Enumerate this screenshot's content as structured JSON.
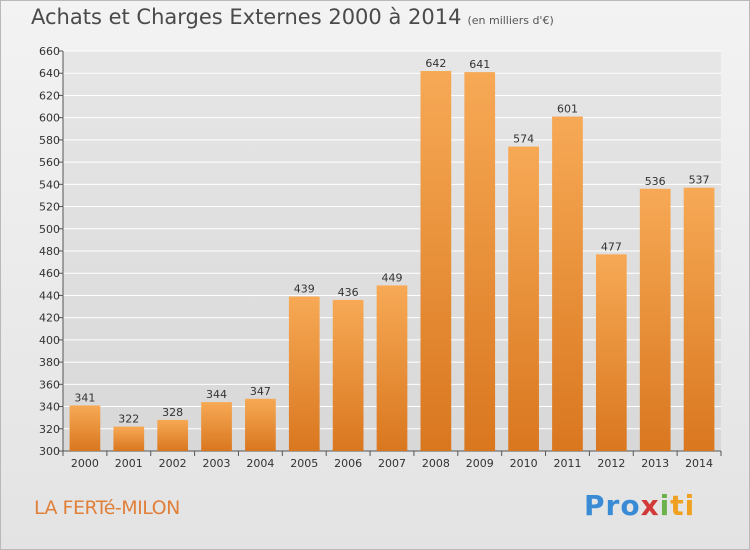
{
  "title": "Achats et Charges Externes 2000 à 2014",
  "subtitle": "(en milliers d'€)",
  "commune": "LA FERTé-MILON",
  "logo": {
    "p1": "Pro",
    "p2": "x",
    "p3": "i",
    "p4": "ti"
  },
  "colors": {
    "bar_top": "#f7a955",
    "bar_bottom": "#d9771f",
    "grid": "#ffffff",
    "commune": "#e0803a"
  },
  "chart_data": {
    "type": "bar",
    "title": "Achats et Charges Externes 2000 à 2014",
    "subtitle": "(en milliers d'€)",
    "xlabel": "",
    "ylabel": "",
    "categories": [
      "2000",
      "2001",
      "2002",
      "2003",
      "2004",
      "2005",
      "2006",
      "2007",
      "2008",
      "2009",
      "2010",
      "2011",
      "2012",
      "2013",
      "2014"
    ],
    "values": [
      341,
      322,
      328,
      344,
      347,
      439,
      436,
      449,
      642,
      641,
      574,
      601,
      477,
      536,
      537
    ],
    "ylim": [
      300,
      660
    ],
    "yticks": [
      300,
      320,
      340,
      360,
      380,
      400,
      420,
      440,
      460,
      480,
      500,
      520,
      540,
      560,
      580,
      600,
      620,
      640,
      660
    ],
    "grid": true
  }
}
